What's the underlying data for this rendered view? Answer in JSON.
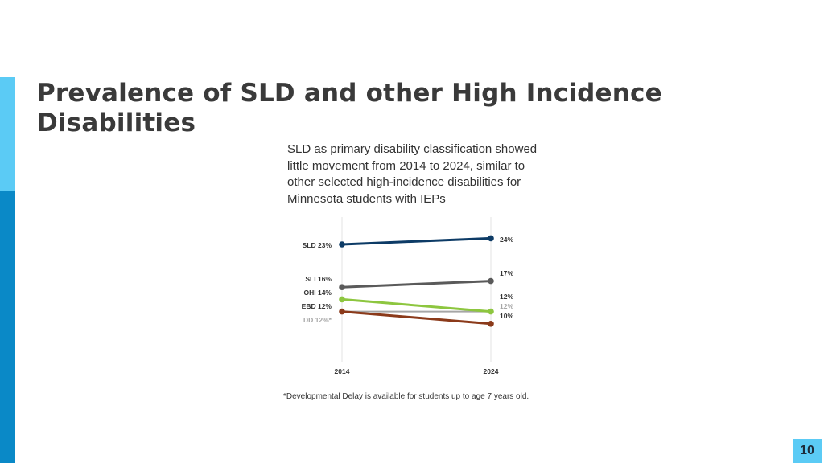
{
  "slide": {
    "title": "Prevalence of SLD and other High Incidence Disabilities",
    "page_number": "10",
    "footnote": "*Developmental Delay is available for students up to age 7 years old."
  },
  "colors": {
    "accent_light": "#5bcbf5",
    "accent_dark": "#0a89c7"
  },
  "chart_data": {
    "type": "line",
    "title": "SLD as primary disability classification showed little movement from 2014 to 2024, similar to other selected high-incidence disabilities for Minnesota students with IEPs",
    "x": [
      "2014",
      "2024"
    ],
    "ylim": [
      0,
      30
    ],
    "xlabel": "",
    "ylabel": "",
    "grid": false,
    "series": [
      {
        "name": "SLD",
        "values": [
          23,
          24
        ],
        "color": "#0d3b66",
        "start_label": "SLD 23%",
        "end_label": "24%"
      },
      {
        "name": "SLI",
        "values": [
          16,
          17
        ],
        "color": "#5a5a5a",
        "start_label": "SLI 16%",
        "end_label": "17%"
      },
      {
        "name": "OHI",
        "values": [
          14,
          12
        ],
        "color": "#8dc63f",
        "start_label": "OHI 14%",
        "end_label": "12%"
      },
      {
        "name": "EBD",
        "values": [
          12,
          10
        ],
        "color": "#8b3a1a",
        "start_label": "EBD 12%",
        "end_label": "10%"
      },
      {
        "name": "DD",
        "values": [
          12,
          12
        ],
        "color": "#a6a6a6",
        "start_label": "DD 12%*",
        "end_label": "12%"
      }
    ]
  }
}
